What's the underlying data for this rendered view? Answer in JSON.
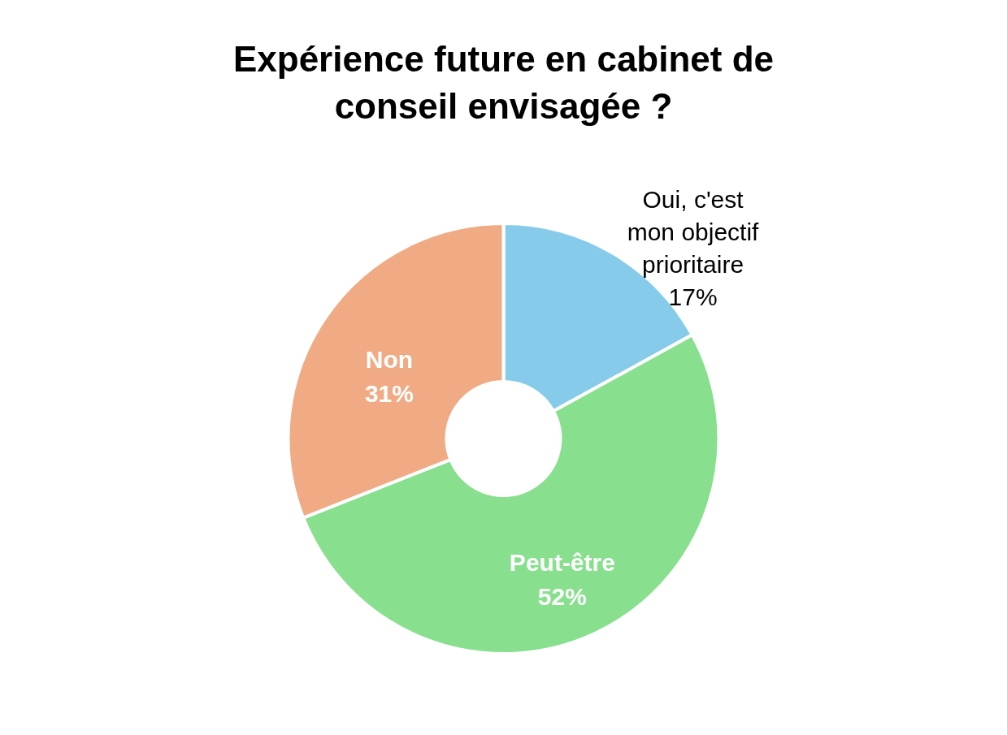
{
  "chart_data": {
    "type": "donut",
    "title": "Expérience future en cabinet de conseil envisagée ?",
    "categories": [
      "Oui, c'est mon objectif prioritaire",
      "Peut-être",
      "Non"
    ],
    "values": [
      17,
      52,
      31
    ],
    "colors": [
      "#87cbeb",
      "#88e08e",
      "#f0ab85"
    ],
    "value_labels": [
      "17%",
      "52%",
      "31%"
    ],
    "legend": false
  }
}
